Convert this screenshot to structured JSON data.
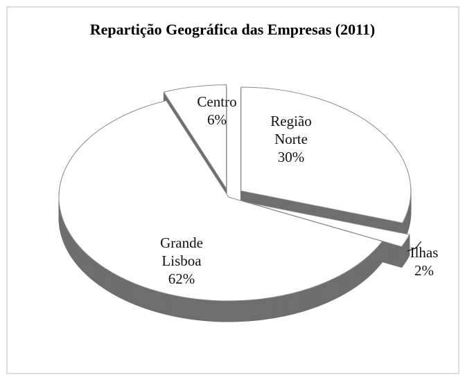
{
  "chart_data": {
    "type": "pie3d",
    "title": "Repartição Geográfica das Empresas (2011)",
    "categories": [
      "Região Norte",
      "Ilhas",
      "Grande Lisboa",
      "Centro"
    ],
    "values": [
      30,
      2,
      62,
      6
    ],
    "value_labels": [
      "30%",
      "2%",
      "62%",
      "6%"
    ],
    "color": "#ffffff",
    "side_color": "#6e6e6e"
  }
}
